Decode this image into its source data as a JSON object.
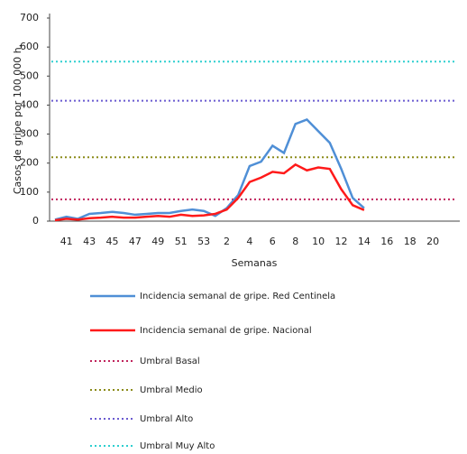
{
  "chart_data": {
    "type": "line",
    "y_label": "Casos de gripe  por 100 000 h.",
    "x_label": "Semanas",
    "categories": [
      null,
      41,
      null,
      43,
      null,
      45,
      null,
      47,
      null,
      49,
      null,
      51,
      null,
      53,
      null,
      2,
      null,
      4,
      null,
      6,
      null,
      8,
      null,
      10,
      null,
      12,
      null,
      14,
      null,
      16,
      null,
      18,
      null,
      20
    ],
    "series": [
      {
        "name": "Incidencia semanal de gripe. Red Centinela",
        "color": "#4f8fd6",
        "values": [
          5,
          15,
          8,
          25,
          28,
          32,
          28,
          22,
          25,
          28,
          28,
          35,
          40,
          35,
          18,
          45,
          90,
          190,
          205,
          260,
          235,
          335,
          350,
          310,
          270,
          180,
          80,
          45,
          null,
          null,
          null,
          null,
          null,
          null
        ]
      },
      {
        "name": "Incidencia semanal de gripe. Nacional",
        "color": "#ff1a1a",
        "values": [
          3,
          8,
          5,
          10,
          12,
          15,
          12,
          12,
          15,
          18,
          15,
          22,
          18,
          20,
          25,
          40,
          80,
          135,
          150,
          170,
          165,
          195,
          175,
          185,
          180,
          110,
          55,
          38,
          null,
          null,
          null,
          null,
          null,
          null
        ]
      }
    ],
    "thresholds": [
      {
        "name": "Umbral Basal",
        "color": "#c0245c",
        "value": 75
      },
      {
        "name": "Umbral Medio",
        "color": "#8b8b1a",
        "value": 220
      },
      {
        "name": "Umbral Alto",
        "color": "#6b5bd0",
        "value": 415
      },
      {
        "name": "Umbral Muy Alto",
        "color": "#2ecfd0",
        "value": 550
      }
    ],
    "ylim": [
      0,
      700
    ],
    "yticks": [
      0,
      100,
      200,
      300,
      400,
      500,
      600,
      700
    ]
  }
}
